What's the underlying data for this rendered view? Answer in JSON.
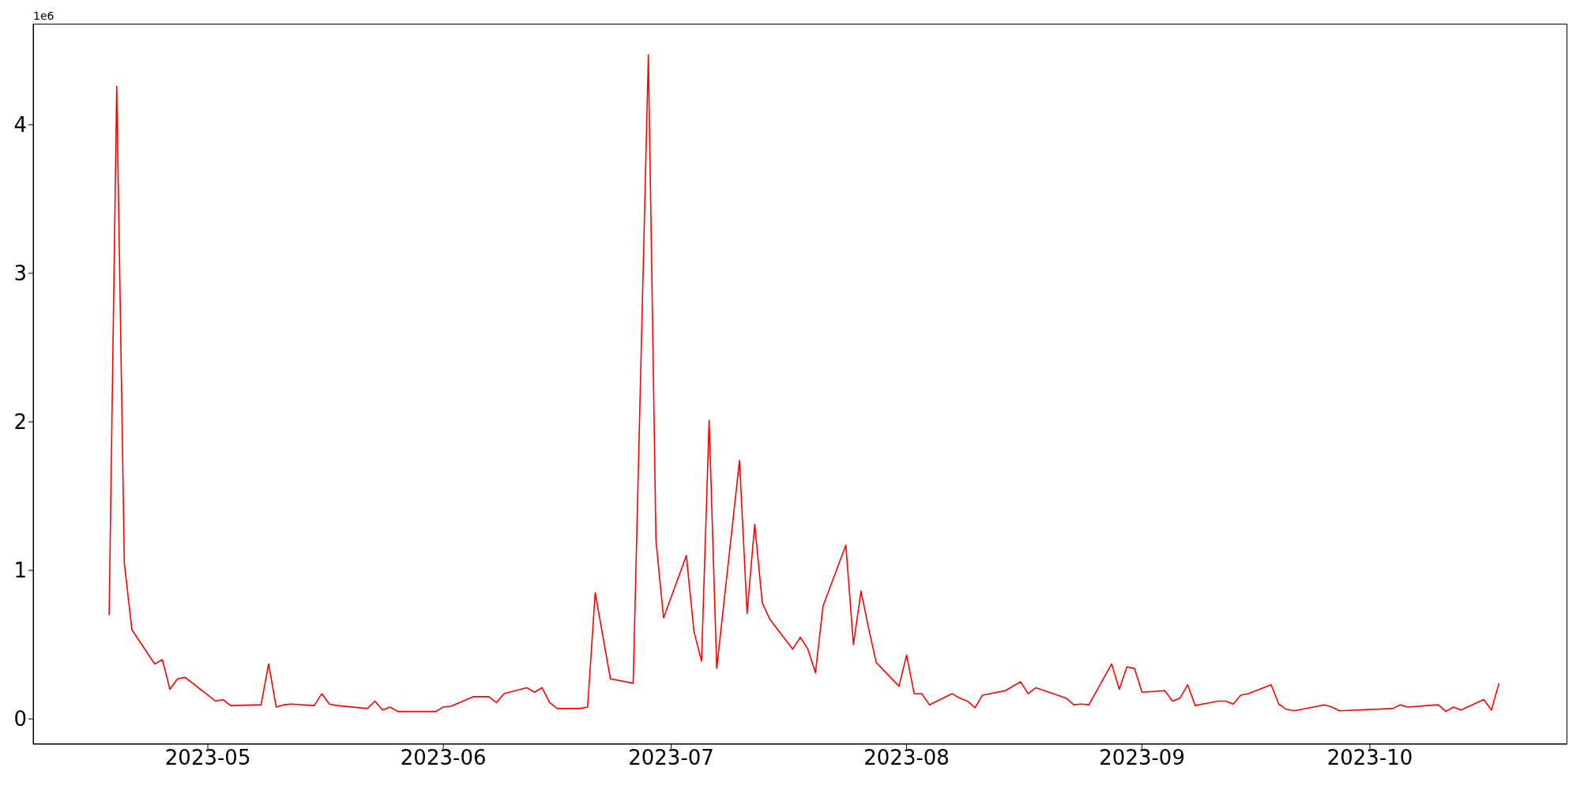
{
  "chart_data": {
    "type": "line",
    "annotations": [
      "1e6"
    ],
    "x": [
      "2023-04-18",
      "2023-04-19",
      "2023-04-20",
      "2023-04-21",
      "2023-04-24",
      "2023-04-25",
      "2023-04-26",
      "2023-04-27",
      "2023-04-28",
      "2023-05-02",
      "2023-05-03",
      "2023-05-04",
      "2023-05-08",
      "2023-05-09",
      "2023-05-10",
      "2023-05-11",
      "2023-05-12",
      "2023-05-15",
      "2023-05-16",
      "2023-05-17",
      "2023-05-18",
      "2023-05-22",
      "2023-05-23",
      "2023-05-24",
      "2023-05-25",
      "2023-05-26",
      "2023-05-31",
      "2023-06-01",
      "2023-06-02",
      "2023-06-05",
      "2023-06-07",
      "2023-06-08",
      "2023-06-09",
      "2023-06-12",
      "2023-06-13",
      "2023-06-14",
      "2023-06-15",
      "2023-06-16",
      "2023-06-19",
      "2023-06-20",
      "2023-06-21",
      "2023-06-23",
      "2023-06-26",
      "2023-06-28",
      "2023-06-29",
      "2023-06-30",
      "2023-07-03",
      "2023-07-04",
      "2023-07-05",
      "2023-07-06",
      "2023-07-07",
      "2023-07-10",
      "2023-07-11",
      "2023-07-12",
      "2023-07-13",
      "2023-07-14",
      "2023-07-17",
      "2023-07-18",
      "2023-07-19",
      "2023-07-20",
      "2023-07-21",
      "2023-07-24",
      "2023-07-25",
      "2023-07-26",
      "2023-07-27",
      "2023-07-28",
      "2023-07-31",
      "2023-08-01",
      "2023-08-02",
      "2023-08-03",
      "2023-08-04",
      "2023-08-07",
      "2023-08-08",
      "2023-08-09",
      "2023-08-10",
      "2023-08-11",
      "2023-08-14",
      "2023-08-16",
      "2023-08-17",
      "2023-08-18",
      "2023-08-22",
      "2023-08-23",
      "2023-08-24",
      "2023-08-25",
      "2023-08-28",
      "2023-08-29",
      "2023-08-30",
      "2023-08-31",
      "2023-09-01",
      "2023-09-04",
      "2023-09-05",
      "2023-09-06",
      "2023-09-07",
      "2023-09-08",
      "2023-09-11",
      "2023-09-12",
      "2023-09-13",
      "2023-09-14",
      "2023-09-15",
      "2023-09-18",
      "2023-09-19",
      "2023-09-20",
      "2023-09-21",
      "2023-09-25",
      "2023-09-26",
      "2023-09-27",
      "2023-10-04",
      "2023-10-05",
      "2023-10-06",
      "2023-10-10",
      "2023-10-11",
      "2023-10-12",
      "2023-10-13",
      "2023-10-16",
      "2023-10-17",
      "2023-10-18"
    ],
    "series": [
      {
        "color": "#ff0000",
        "values": [
          0.7,
          4.26,
          1.05,
          0.6,
          0.37,
          0.4,
          0.2,
          0.27,
          0.28,
          0.12,
          0.13,
          0.09,
          0.095,
          0.37,
          0.08,
          0.095,
          0.1,
          0.09,
          0.17,
          0.1,
          0.09,
          0.07,
          0.12,
          0.06,
          0.08,
          0.05,
          0.05,
          0.08,
          0.085,
          0.15,
          0.15,
          0.11,
          0.17,
          0.21,
          0.18,
          0.21,
          0.11,
          0.07,
          0.07,
          0.08,
          0.85,
          0.27,
          0.24,
          4.47,
          1.2,
          0.68,
          1.1,
          0.59,
          0.39,
          2.01,
          0.34,
          1.74,
          0.71,
          1.31,
          0.78,
          0.67,
          0.47,
          0.55,
          0.47,
          0.31,
          0.76,
          1.17,
          0.5,
          0.86,
          0.61,
          0.38,
          0.22,
          0.43,
          0.17,
          0.17,
          0.095,
          0.17,
          0.14,
          0.12,
          0.075,
          0.16,
          0.19,
          0.25,
          0.17,
          0.21,
          0.14,
          0.095,
          0.1,
          0.095,
          0.37,
          0.2,
          0.35,
          0.34,
          0.18,
          0.19,
          0.12,
          0.14,
          0.23,
          0.09,
          0.12,
          0.12,
          0.1,
          0.16,
          0.17,
          0.23,
          0.1,
          0.065,
          0.055,
          0.095,
          0.08,
          0.055,
          0.07,
          0.095,
          0.08,
          0.095,
          0.05,
          0.08,
          0.06,
          0.13,
          0.06,
          0.24
        ]
      }
    ],
    "xlim": [
      "2023-04-08",
      "2023-10-27"
    ],
    "xticks": [
      {
        "value": "2023-05-01",
        "label": "2023-05"
      },
      {
        "value": "2023-06-01",
        "label": "2023-06"
      },
      {
        "value": "2023-07-01",
        "label": "2023-07"
      },
      {
        "value": "2023-08-01",
        "label": "2023-08"
      },
      {
        "value": "2023-09-01",
        "label": "2023-09"
      },
      {
        "value": "2023-10-01",
        "label": "2023-10"
      }
    ],
    "ylim": [
      -0.17,
      4.68
    ],
    "yticks": [
      0,
      1,
      2,
      3,
      4
    ]
  }
}
